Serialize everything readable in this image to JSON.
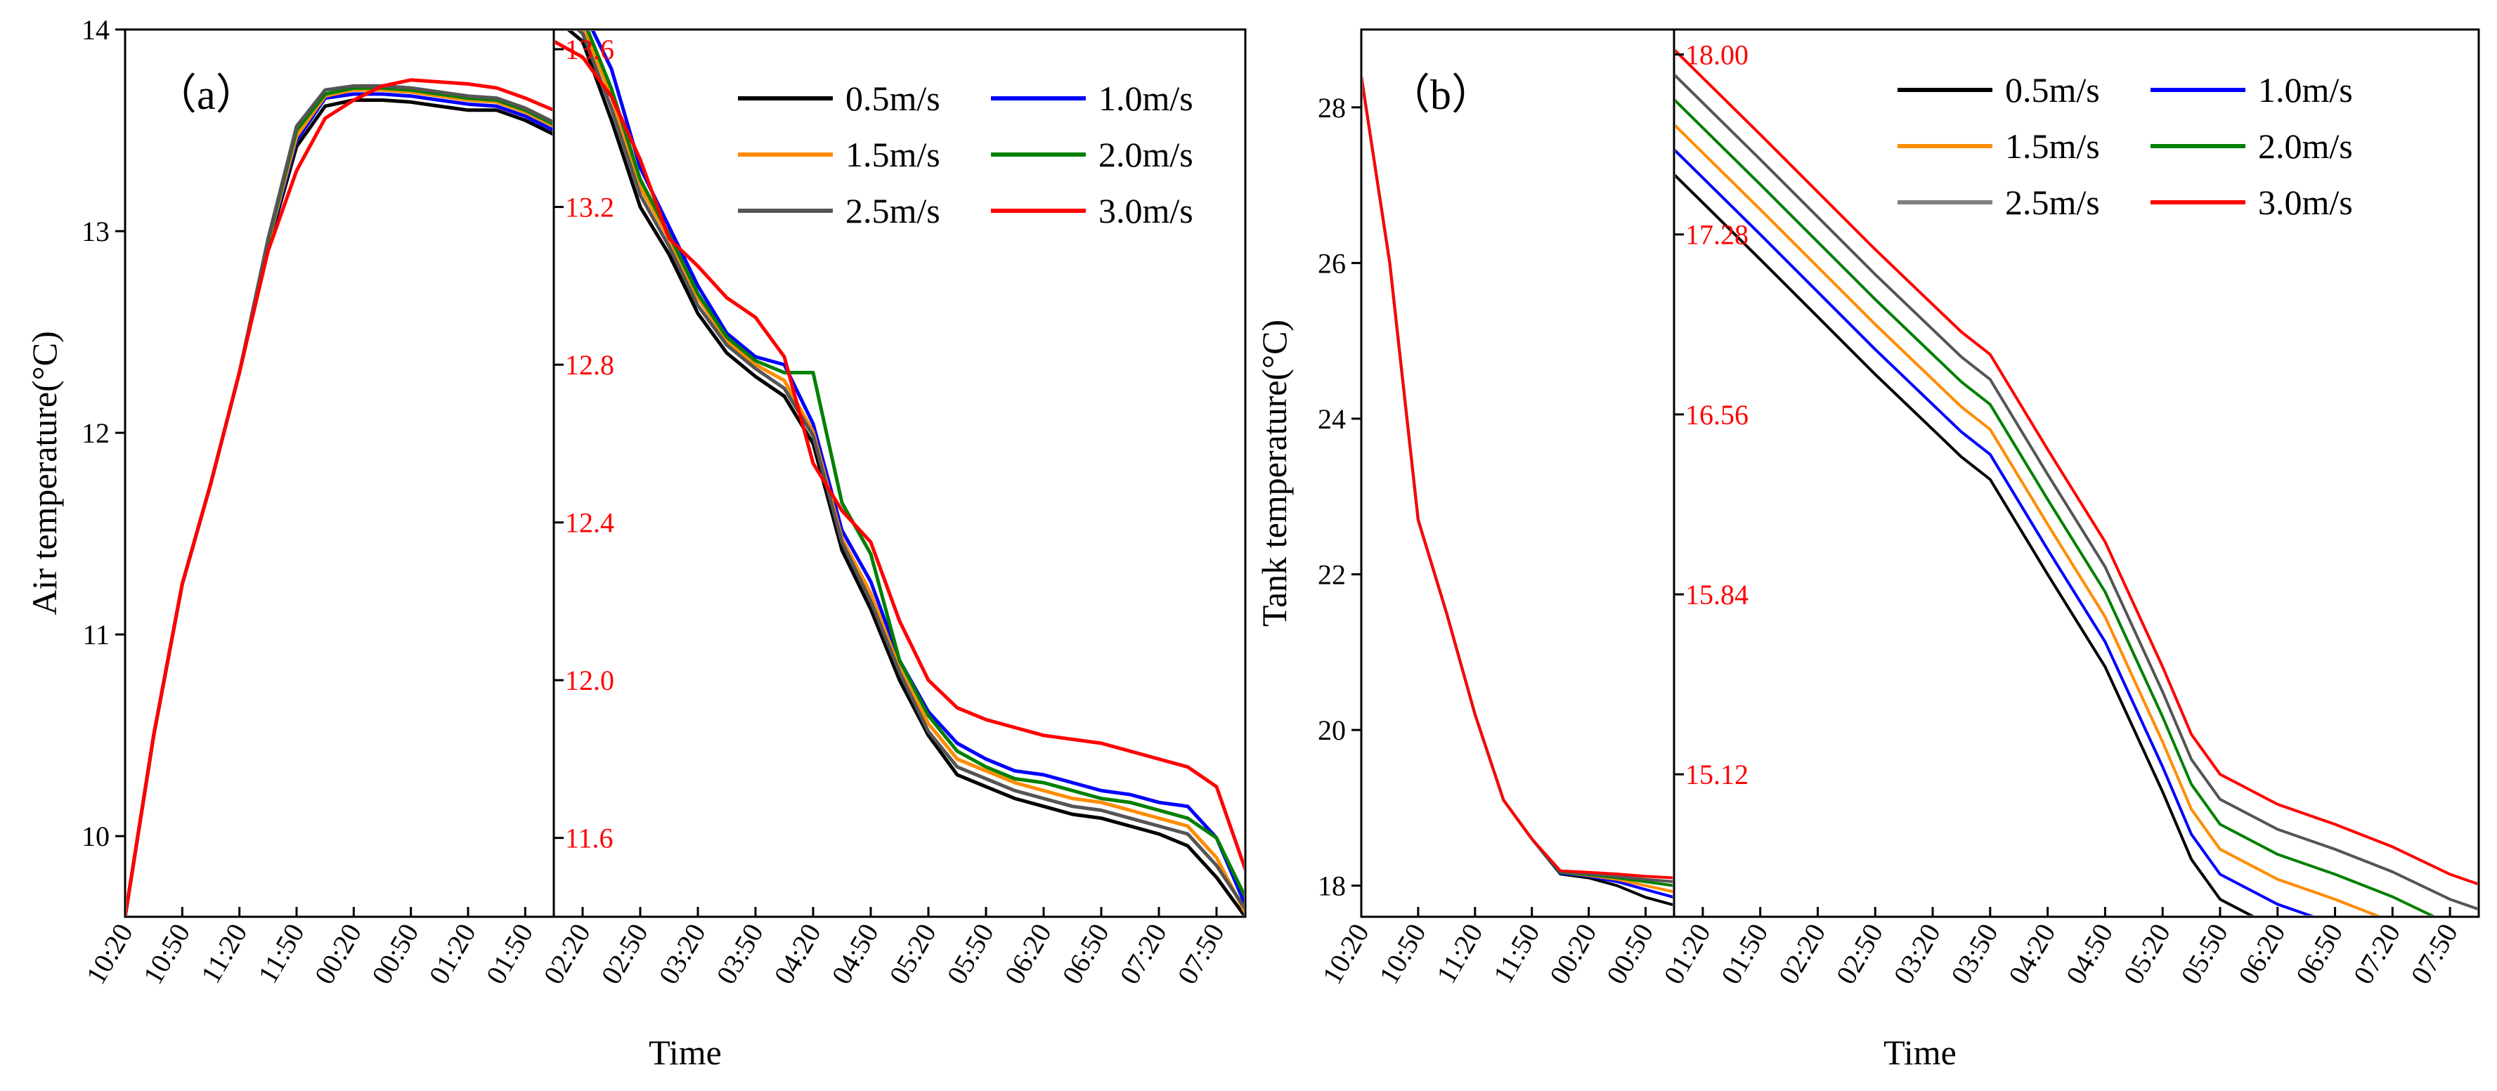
{
  "chart_data": [
    {
      "type": "line",
      "panel_label": "（a）",
      "ylabel": "Air temperature(°C)",
      "xlabel": "Time",
      "legend_position": "top-right",
      "left_segment": {
        "ylim": [
          9.6,
          14.0
        ],
        "yticks": [
          "10",
          "11",
          "12",
          "13",
          "14"
        ],
        "ytick_values": [
          10,
          11,
          12,
          13,
          14
        ],
        "x_categories": [
          "10:20",
          "10:50",
          "11:20",
          "11:50",
          "00:20",
          "00:50",
          "01:20",
          "01:50"
        ],
        "x_points": [
          0,
          0.5,
          1,
          1.5,
          2,
          2.5,
          3,
          3.5,
          4,
          4.5,
          5,
          5.5,
          6,
          6.5,
          7,
          7.5
        ],
        "series": [
          {
            "name": "0.5m/s",
            "values": [
              9.6,
              10.5,
              11.25,
              11.75,
              12.3,
              12.92,
              13.42,
              13.62,
              13.65,
              13.65,
              13.64,
              13.62,
              13.6,
              13.6,
              13.55,
              13.48
            ]
          },
          {
            "name": "1.0m/s",
            "values": [
              9.6,
              10.5,
              11.25,
              11.75,
              12.3,
              12.93,
              13.45,
              13.66,
              13.68,
              13.68,
              13.67,
              13.65,
              13.63,
              13.62,
              13.57,
              13.5
            ]
          },
          {
            "name": "1.5m/s",
            "values": [
              9.6,
              10.5,
              11.25,
              11.75,
              12.3,
              12.94,
              13.47,
              13.67,
              13.7,
              13.7,
              13.69,
              13.67,
              13.65,
              13.64,
              13.59,
              13.52
            ]
          },
          {
            "name": "2.0m/s",
            "values": [
              9.6,
              10.5,
              11.25,
              11.75,
              12.3,
              12.95,
              13.5,
              13.68,
              13.71,
              13.71,
              13.7,
              13.68,
              13.66,
              13.65,
              13.6,
              13.53
            ]
          },
          {
            "name": "2.5m/s",
            "values": [
              9.6,
              10.5,
              11.25,
              11.75,
              12.3,
              12.96,
              13.52,
              13.7,
              13.72,
              13.72,
              13.71,
              13.69,
              13.67,
              13.66,
              13.61,
              13.54
            ]
          },
          {
            "name": "3.0m/s",
            "values": [
              9.6,
              10.5,
              11.25,
              11.75,
              12.3,
              12.9,
              13.3,
              13.56,
              13.65,
              13.72,
              13.75,
              13.74,
              13.73,
              13.71,
              13.66,
              13.6
            ]
          }
        ]
      },
      "right_segment": {
        "ylim": [
          11.4,
          13.65
        ],
        "yticks": [
          "11.6",
          "12.0",
          "12.4",
          "12.8",
          "13.2",
          "13.6"
        ],
        "ytick_values": [
          11.6,
          12.0,
          12.4,
          12.8,
          13.2,
          13.6
        ],
        "x_categories": [
          "02:20",
          "02:50",
          "03:20",
          "03:50",
          "04:20",
          "04:50",
          "05:20",
          "05:50",
          "06:20",
          "06:50",
          "07:20",
          "07:50"
        ],
        "x_points": [
          -0.5,
          0,
          0.5,
          1,
          1.5,
          2,
          2.5,
          3,
          3.5,
          4,
          4.5,
          5,
          5.5,
          6,
          6.5,
          7,
          7.5,
          8,
          8.5,
          9,
          9.5,
          10,
          10.5,
          11,
          11.5
        ],
        "series": [
          {
            "name": "0.5m/s",
            "values": [
              13.68,
              13.62,
              13.42,
              13.2,
              13.08,
              12.93,
              12.83,
              12.77,
              12.72,
              12.6,
              12.33,
              12.18,
              12.0,
              11.86,
              11.76,
              11.73,
              11.7,
              11.68,
              11.66,
              11.65,
              11.63,
              11.61,
              11.58,
              11.5,
              11.4
            ]
          },
          {
            "name": "1.0m/s",
            "values": [
              13.77,
              13.7,
              13.55,
              13.3,
              13.15,
              13.0,
              12.88,
              12.82,
              12.8,
              12.65,
              12.38,
              12.25,
              12.05,
              11.92,
              11.84,
              11.8,
              11.77,
              11.76,
              11.74,
              11.72,
              11.71,
              11.69,
              11.68,
              11.6,
              11.43
            ]
          },
          {
            "name": "1.5m/s",
            "values": [
              13.72,
              13.66,
              13.48,
              13.25,
              13.12,
              12.97,
              12.86,
              12.8,
              12.76,
              12.63,
              12.36,
              12.22,
              12.03,
              11.89,
              11.8,
              11.77,
              11.74,
              11.72,
              11.7,
              11.69,
              11.67,
              11.65,
              11.63,
              11.55,
              11.41
            ]
          },
          {
            "name": "2.0m/s",
            "values": [
              13.74,
              13.68,
              13.5,
              13.27,
              13.13,
              12.98,
              12.87,
              12.81,
              12.78,
              12.78,
              12.45,
              12.32,
              12.05,
              11.91,
              11.82,
              11.78,
              11.75,
              11.74,
              11.72,
              11.7,
              11.69,
              11.67,
              11.65,
              11.6,
              11.45
            ]
          },
          {
            "name": "2.5m/s",
            "values": [
              13.7,
              13.64,
              13.45,
              13.23,
              13.1,
              12.95,
              12.85,
              12.79,
              12.74,
              12.62,
              12.35,
              12.2,
              12.02,
              11.87,
              11.78,
              11.75,
              11.72,
              11.7,
              11.68,
              11.67,
              11.65,
              11.63,
              11.61,
              11.53,
              11.42
            ]
          },
          {
            "name": "3.0m/s",
            "values": [
              13.62,
              13.58,
              13.48,
              13.32,
              13.12,
              13.05,
              12.97,
              12.92,
              12.82,
              12.55,
              12.43,
              12.35,
              12.15,
              12.0,
              11.93,
              11.9,
              11.88,
              11.86,
              11.85,
              11.84,
              11.82,
              11.8,
              11.78,
              11.73,
              11.52
            ]
          }
        ]
      }
    },
    {
      "type": "line",
      "panel_label": "（b）",
      "ylabel": "Tank temperature(°C)",
      "xlabel": "Time",
      "legend_position": "top-right",
      "left_segment": {
        "ylim": [
          17.6,
          29.0
        ],
        "yticks": [
          "18",
          "20",
          "22",
          "24",
          "26",
          "28"
        ],
        "ytick_values": [
          18,
          20,
          22,
          24,
          26,
          28
        ],
        "x_categories": [
          "10:20",
          "10:50",
          "11:20",
          "11:50",
          "00:20",
          "00:50"
        ],
        "x_points": [
          0,
          0.5,
          1,
          1.5,
          2,
          2.5,
          3,
          3.5,
          4,
          4.5,
          5,
          5.5
        ],
        "series": [
          {
            "name": "0.5m/s",
            "values": [
              28.4,
              26.0,
              22.7,
              21.5,
              20.2,
              19.1,
              18.6,
              18.15,
              18.1,
              18.0,
              17.85,
              17.75
            ]
          },
          {
            "name": "1.0m/s",
            "values": [
              28.4,
              26.0,
              22.7,
              21.5,
              20.2,
              19.1,
              18.6,
              18.16,
              18.12,
              18.05,
              17.95,
              17.85
            ]
          },
          {
            "name": "1.5m/s",
            "values": [
              28.4,
              26.0,
              22.7,
              21.5,
              20.2,
              19.1,
              18.6,
              18.17,
              18.13,
              18.08,
              18.0,
              17.92
            ]
          },
          {
            "name": "2.0m/s",
            "values": [
              28.4,
              26.0,
              22.7,
              21.5,
              20.2,
              19.1,
              18.6,
              18.17,
              18.14,
              18.1,
              18.05,
              18.0
            ]
          },
          {
            "name": "2.5m/s",
            "values": [
              28.4,
              26.0,
              22.7,
              21.5,
              20.2,
              19.1,
              18.6,
              18.18,
              18.15,
              18.12,
              18.08,
              18.05
            ]
          },
          {
            "name": "3.0m/s",
            "values": [
              28.4,
              26.0,
              22.7,
              21.5,
              20.2,
              19.1,
              18.6,
              18.19,
              18.17,
              18.15,
              18.12,
              18.1
            ]
          }
        ]
      },
      "right_segment": {
        "ylim": [
          14.55,
          18.1
        ],
        "yticks": [
          "15.12",
          "15.84",
          "16.56",
          "17.28",
          "18.00"
        ],
        "ytick_values": [
          15.12,
          15.84,
          16.56,
          17.28,
          18.0
        ],
        "x_categories": [
          "01:20",
          "01:50",
          "02:20",
          "02:50",
          "03:20",
          "03:50",
          "04:20",
          "04:50",
          "05:20",
          "05:50",
          "06:20",
          "06:50",
          "07:20",
          "07:50"
        ],
        "x_points": [
          -0.5,
          1,
          2,
          3,
          4,
          4.5,
          5,
          6,
          7,
          8,
          8.5,
          9,
          10,
          11,
          12,
          13,
          13.5
        ],
        "series": [
          {
            "name": "0.5m/s",
            "values": [
              17.52,
              17.18,
              16.95,
              16.72,
              16.5,
              16.39,
              16.3,
              15.92,
              15.55,
              15.05,
              14.78,
              14.62,
              14.5,
              14.42,
              14.33,
              14.22,
              14.18
            ]
          },
          {
            "name": "1.0m/s",
            "values": [
              17.62,
              17.28,
              17.05,
              16.82,
              16.6,
              16.49,
              16.4,
              16.02,
              15.65,
              15.15,
              14.88,
              14.72,
              14.6,
              14.52,
              14.43,
              14.32,
              14.28
            ]
          },
          {
            "name": "1.5m/s",
            "values": [
              17.72,
              17.38,
              17.15,
              16.92,
              16.7,
              16.59,
              16.5,
              16.12,
              15.75,
              15.25,
              14.98,
              14.82,
              14.7,
              14.62,
              14.53,
              14.42,
              14.38
            ]
          },
          {
            "name": "2.0m/s",
            "values": [
              17.82,
              17.48,
              17.25,
              17.02,
              16.8,
              16.69,
              16.6,
              16.22,
              15.85,
              15.35,
              15.08,
              14.92,
              14.8,
              14.72,
              14.63,
              14.52,
              14.48
            ]
          },
          {
            "name": "2.5m/s",
            "values": [
              17.92,
              17.58,
              17.35,
              17.12,
              16.9,
              16.79,
              16.7,
              16.32,
              15.95,
              15.45,
              15.18,
              15.02,
              14.9,
              14.82,
              14.73,
              14.62,
              14.58
            ]
          },
          {
            "name": "3.0m/s",
            "values": [
              18.02,
              17.68,
              17.45,
              17.22,
              17.0,
              16.89,
              16.8,
              16.42,
              16.05,
              15.55,
              15.28,
              15.12,
              15.0,
              14.92,
              14.83,
              14.72,
              14.68
            ]
          }
        ]
      }
    }
  ],
  "legend": [
    {
      "name": "0.5m/s",
      "color": "#000000"
    },
    {
      "name": "1.0m/s",
      "color": "#0000ff"
    },
    {
      "name": "1.5m/s",
      "color": "#ff8c00"
    },
    {
      "name": "2.0m/s",
      "color": "#008000"
    },
    {
      "name": "2.5m/s",
      "color": "#555555"
    },
    {
      "name": "3.0m/s",
      "color": "#ff0000"
    }
  ],
  "colors": {
    "left_axis": "#000000",
    "right_axis": "#ff0000",
    "legend_b_2.5": "#808080"
  }
}
